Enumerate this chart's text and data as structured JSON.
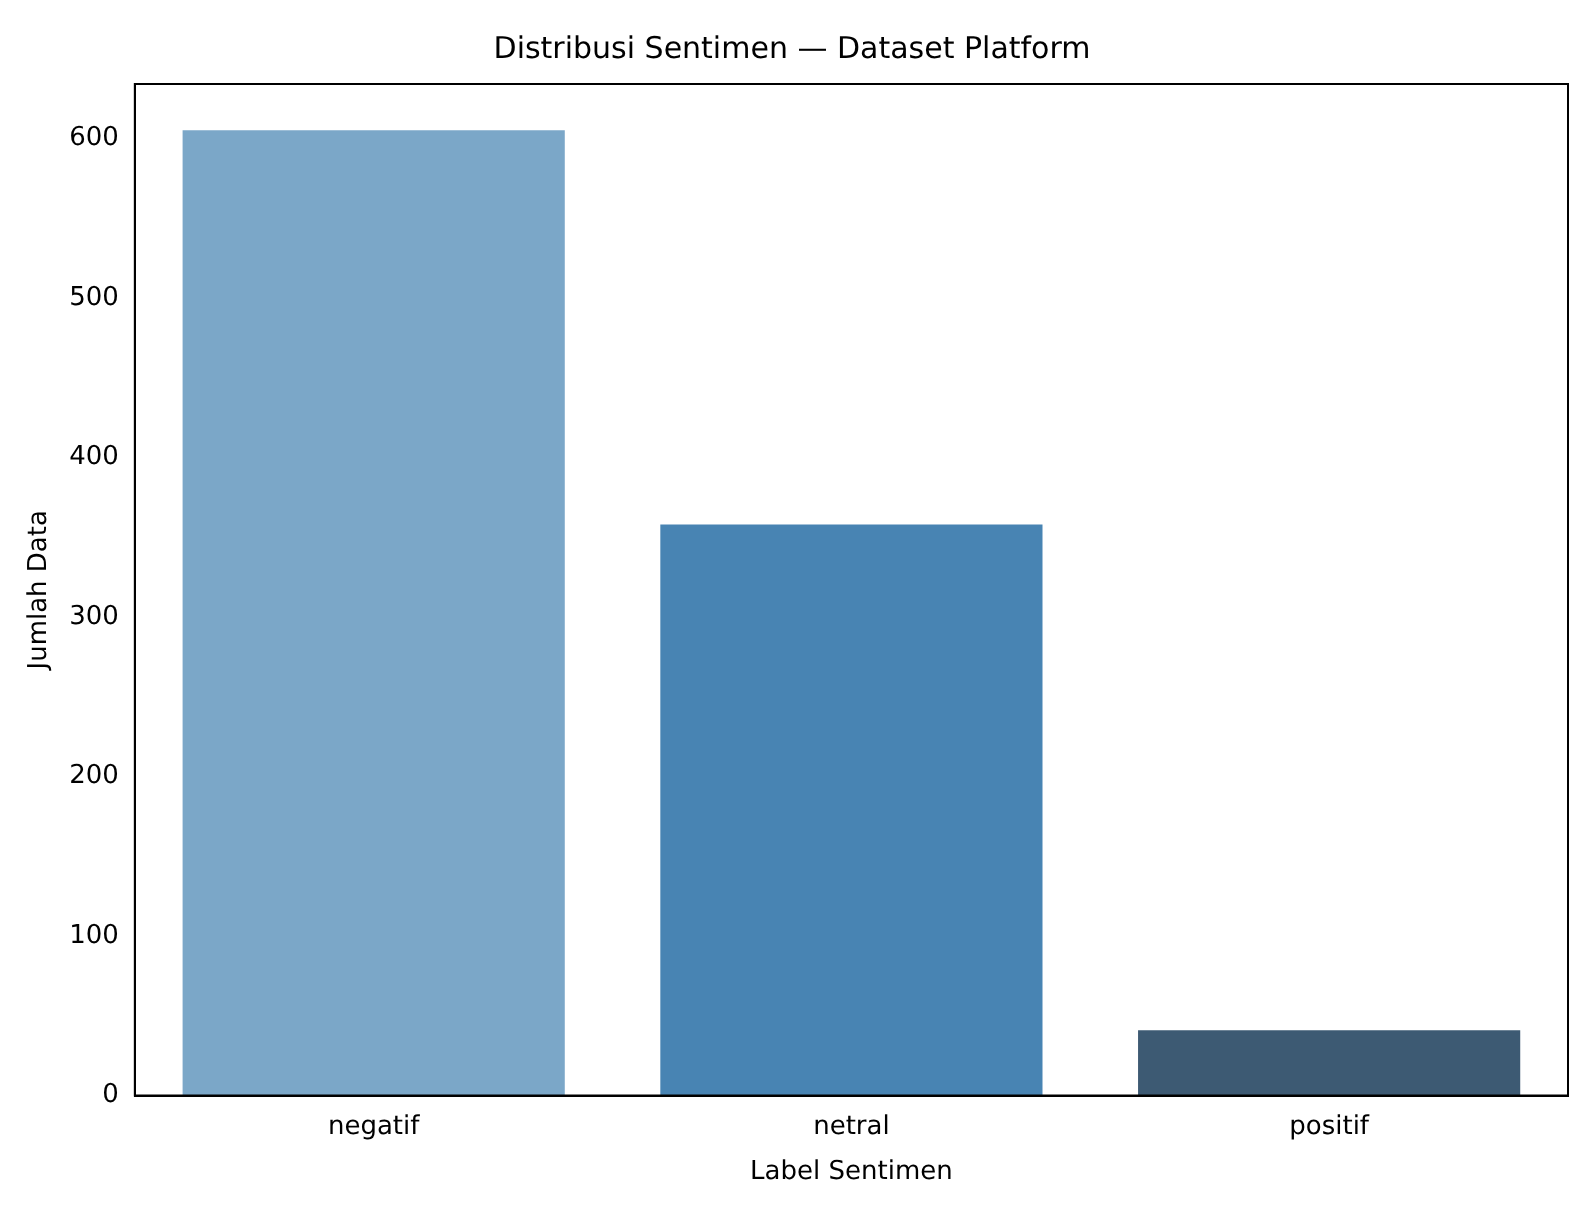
{
  "chart_data": {
    "type": "bar",
    "title": "Distribusi Sentimen — Dataset Platform",
    "xlabel": "Label Sentimen",
    "ylabel": "Jumlah Data",
    "categories": [
      "negatif",
      "netral",
      "positif"
    ],
    "values": [
      605,
      358,
      41
    ],
    "colors": [
      "#7ba7c8",
      "#4884b3",
      "#3d5a73"
    ],
    "ylim": [
      0,
      634
    ],
    "yticks": [
      0,
      100,
      200,
      300,
      400,
      500,
      600
    ],
    "grid": false,
    "legend": false
  }
}
